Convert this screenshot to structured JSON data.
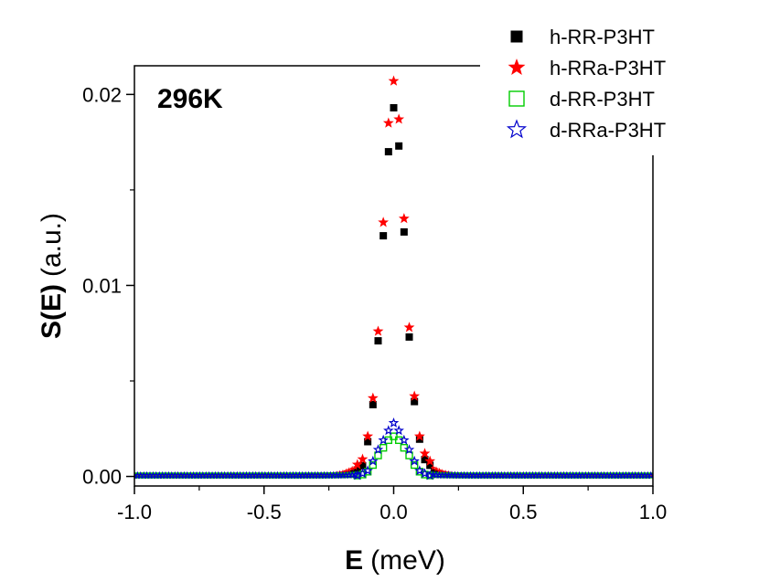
{
  "chart_data": {
    "type": "scatter",
    "title": "",
    "annotation": "296K",
    "xlabel": {
      "bold": "E",
      "unit": "(meV)"
    },
    "ylabel": {
      "bold": "S(E)",
      "unit": "(a.u.)"
    },
    "xlim": [
      -1.0,
      1.0
    ],
    "ylim": [
      -0.0005,
      0.0215
    ],
    "x_ticks": [
      -1.0,
      -0.5,
      0.0,
      0.5,
      1.0
    ],
    "x_tick_labels": [
      "-1.0",
      "-0.5",
      "0.0",
      "0.5",
      "1.0"
    ],
    "y_ticks": [
      0.0,
      0.01,
      0.02
    ],
    "y_tick_labels": [
      "0.00",
      "0.01",
      "0.02"
    ],
    "legend_position": "top-right",
    "series": [
      {
        "name": "h-RR-P3HT",
        "marker": "filled-square",
        "color": "#000000",
        "points": [
          [
            -0.14,
            0.00034
          ],
          [
            -0.12,
            0.00056
          ],
          [
            -0.1,
            0.00182
          ],
          [
            -0.08,
            0.00376
          ],
          [
            -0.06,
            0.0071
          ],
          [
            -0.04,
            0.0126
          ],
          [
            -0.02,
            0.017
          ],
          [
            0.0,
            0.0193
          ],
          [
            0.02,
            0.0173
          ],
          [
            0.04,
            0.0128
          ],
          [
            0.06,
            0.0073
          ],
          [
            0.08,
            0.00392
          ],
          [
            0.1,
            0.00195
          ],
          [
            0.12,
            0.00088
          ],
          [
            0.14,
            0.00058
          ]
        ]
      },
      {
        "name": "h-RRa-P3HT",
        "marker": "filled-star",
        "color": "#ff0000",
        "points": [
          [
            -0.14,
            0.00062
          ],
          [
            -0.12,
            0.0009
          ],
          [
            -0.1,
            0.0021
          ],
          [
            -0.08,
            0.0041
          ],
          [
            -0.06,
            0.0076
          ],
          [
            -0.04,
            0.0133
          ],
          [
            -0.02,
            0.0185
          ],
          [
            0.0,
            0.0207
          ],
          [
            0.02,
            0.0187
          ],
          [
            0.04,
            0.0135
          ],
          [
            0.06,
            0.0078
          ],
          [
            0.08,
            0.0042
          ],
          [
            0.1,
            0.0021
          ],
          [
            0.12,
            0.0012
          ],
          [
            0.14,
            0.0008
          ]
        ]
      },
      {
        "name": "d-RR-P3HT",
        "marker": "open-square",
        "color": "#00cc00",
        "points": [
          [
            -0.14,
            5e-05
          ],
          [
            -0.12,
            0.0001
          ],
          [
            -0.1,
            0.00025
          ],
          [
            -0.08,
            0.0006
          ],
          [
            -0.06,
            0.0011
          ],
          [
            -0.04,
            0.0015
          ],
          [
            -0.02,
            0.0019
          ],
          [
            0.0,
            0.0021
          ],
          [
            0.02,
            0.0019
          ],
          [
            0.04,
            0.0015
          ],
          [
            0.06,
            0.0011
          ],
          [
            0.08,
            0.0006
          ],
          [
            0.1,
            0.00025
          ],
          [
            0.12,
            0.0001
          ],
          [
            0.14,
            5e-05
          ]
        ]
      },
      {
        "name": "d-RRa-P3HT",
        "marker": "open-star",
        "color": "#0000cc",
        "points": [
          [
            -0.14,
            5e-05
          ],
          [
            -0.12,
            0.00015
          ],
          [
            -0.1,
            0.0003
          ],
          [
            -0.08,
            0.0008
          ],
          [
            -0.06,
            0.0014
          ],
          [
            -0.04,
            0.0019
          ],
          [
            -0.02,
            0.0024
          ],
          [
            0.0,
            0.0028
          ],
          [
            0.02,
            0.0024
          ],
          [
            0.04,
            0.0019
          ],
          [
            0.06,
            0.0014
          ],
          [
            0.08,
            0.0008
          ],
          [
            0.1,
            0.0003
          ],
          [
            0.12,
            0.00015
          ],
          [
            0.14,
            5e-05
          ]
        ]
      }
    ]
  }
}
